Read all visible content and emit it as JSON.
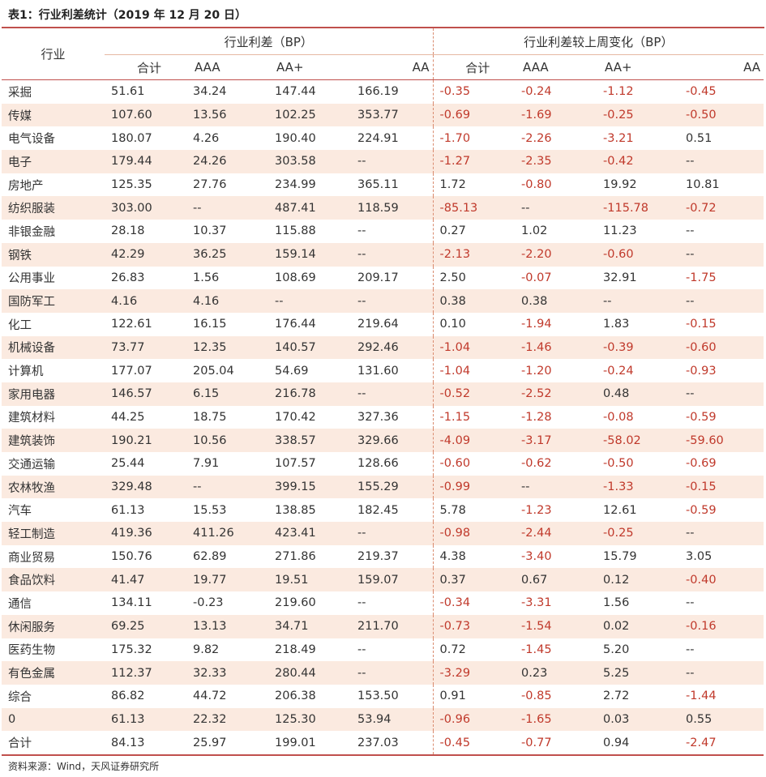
{
  "title": "表1：行业利差统计（2019 年 12 月 20 日）",
  "header": {
    "industry": "行业",
    "group1": "行业利差（BP）",
    "group2": "行业利差较上周变化（BP）",
    "cols": [
      "合计",
      "AAA",
      "AA+",
      "AA"
    ]
  },
  "rows": [
    [
      "采掘",
      "51.61",
      "34.24",
      "147.44",
      "166.19",
      "-0.35",
      "-0.24",
      "-1.12",
      "-0.45"
    ],
    [
      "传媒",
      "107.60",
      "13.56",
      "102.25",
      "353.77",
      "-0.69",
      "-1.69",
      "-0.25",
      "-0.50"
    ],
    [
      "电气设备",
      "180.07",
      "4.26",
      "190.40",
      "224.91",
      "-1.70",
      "-2.26",
      "-3.21",
      "0.51"
    ],
    [
      "电子",
      "179.44",
      "24.26",
      "303.58",
      "--",
      "-1.27",
      "-2.35",
      "-0.42",
      "--"
    ],
    [
      "房地产",
      "125.35",
      "27.76",
      "234.99",
      "365.11",
      "1.72",
      "-0.80",
      "19.92",
      "10.81"
    ],
    [
      "纺织服装",
      "303.00",
      "--",
      "487.41",
      "118.59",
      "-85.13",
      "--",
      "-115.78",
      "-0.72"
    ],
    [
      "非银金融",
      "28.18",
      "10.37",
      "115.88",
      "--",
      "0.27",
      "1.02",
      "11.23",
      "--"
    ],
    [
      "钢铁",
      "42.29",
      "36.25",
      "159.14",
      "--",
      "-2.13",
      "-2.20",
      "-0.60",
      "--"
    ],
    [
      "公用事业",
      "26.83",
      "1.56",
      "108.69",
      "209.17",
      "2.50",
      "-0.07",
      "32.91",
      "-1.75"
    ],
    [
      "国防军工",
      "4.16",
      "4.16",
      "--",
      "--",
      "0.38",
      "0.38",
      "--",
      "--"
    ],
    [
      "化工",
      "122.61",
      "16.15",
      "176.44",
      "219.64",
      "0.10",
      "-1.94",
      "1.83",
      "-0.15"
    ],
    [
      "机械设备",
      "73.77",
      "12.35",
      "140.57",
      "292.46",
      "-1.04",
      "-1.46",
      "-0.39",
      "-0.60"
    ],
    [
      "计算机",
      "177.07",
      "205.04",
      "54.69",
      "131.60",
      "-1.04",
      "-1.20",
      "-0.24",
      "-0.93"
    ],
    [
      "家用电器",
      "146.57",
      "6.15",
      "216.78",
      "--",
      "-0.52",
      "-2.52",
      "0.48",
      "--"
    ],
    [
      "建筑材料",
      "44.25",
      "18.75",
      "170.42",
      "327.36",
      "-1.15",
      "-1.28",
      "-0.08",
      "-0.59"
    ],
    [
      "建筑装饰",
      "190.21",
      "10.56",
      "338.57",
      "329.66",
      "-4.09",
      "-3.17",
      "-58.02",
      "-59.60"
    ],
    [
      "交通运输",
      "25.44",
      "7.91",
      "107.57",
      "128.66",
      "-0.60",
      "-0.62",
      "-0.50",
      "-0.69"
    ],
    [
      "农林牧渔",
      "329.48",
      "--",
      "399.15",
      "155.29",
      "-0.99",
      "--",
      "-1.33",
      "-0.15"
    ],
    [
      "汽车",
      "61.13",
      "15.53",
      "138.85",
      "182.45",
      "5.78",
      "-1.23",
      "12.61",
      "-0.59"
    ],
    [
      "轻工制造",
      "419.36",
      "411.26",
      "423.41",
      "--",
      "-0.98",
      "-2.44",
      "-0.25",
      "--"
    ],
    [
      "商业贸易",
      "150.76",
      "62.89",
      "271.86",
      "219.37",
      "4.38",
      "-3.40",
      "15.79",
      "3.05"
    ],
    [
      "食品饮料",
      "41.47",
      "19.77",
      "19.51",
      "159.07",
      "0.37",
      "0.67",
      "0.12",
      "-0.40"
    ],
    [
      "通信",
      "134.11",
      "-0.23",
      "219.60",
      "--",
      "-0.34",
      "-3.31",
      "1.56",
      "--"
    ],
    [
      "休闲服务",
      "69.25",
      "13.13",
      "34.71",
      "211.70",
      "-0.73",
      "-1.54",
      "0.02",
      "-0.16"
    ],
    [
      "医药生物",
      "175.32",
      "9.82",
      "218.49",
      "--",
      "0.72",
      "-1.45",
      "5.20",
      "--"
    ],
    [
      "有色金属",
      "112.37",
      "32.33",
      "280.44",
      "--",
      "-3.29",
      "0.23",
      "5.25",
      "--"
    ],
    [
      "综合",
      "86.82",
      "44.72",
      "206.38",
      "153.50",
      "0.91",
      "-0.85",
      "2.72",
      "-1.44"
    ],
    [
      "0",
      "61.13",
      "22.32",
      "125.30",
      "53.94",
      "-0.96",
      "-1.65",
      "0.03",
      "0.55"
    ],
    [
      "合计",
      "84.13",
      "25.97",
      "199.01",
      "237.03",
      "-0.45",
      "-0.77",
      "0.94",
      "-2.47"
    ]
  ],
  "source": "资料来源：Wind，天风证券研究所",
  "colors": {
    "accent": "#c0504d",
    "stripe": "#fbeae0",
    "negative": "#c0392b"
  }
}
